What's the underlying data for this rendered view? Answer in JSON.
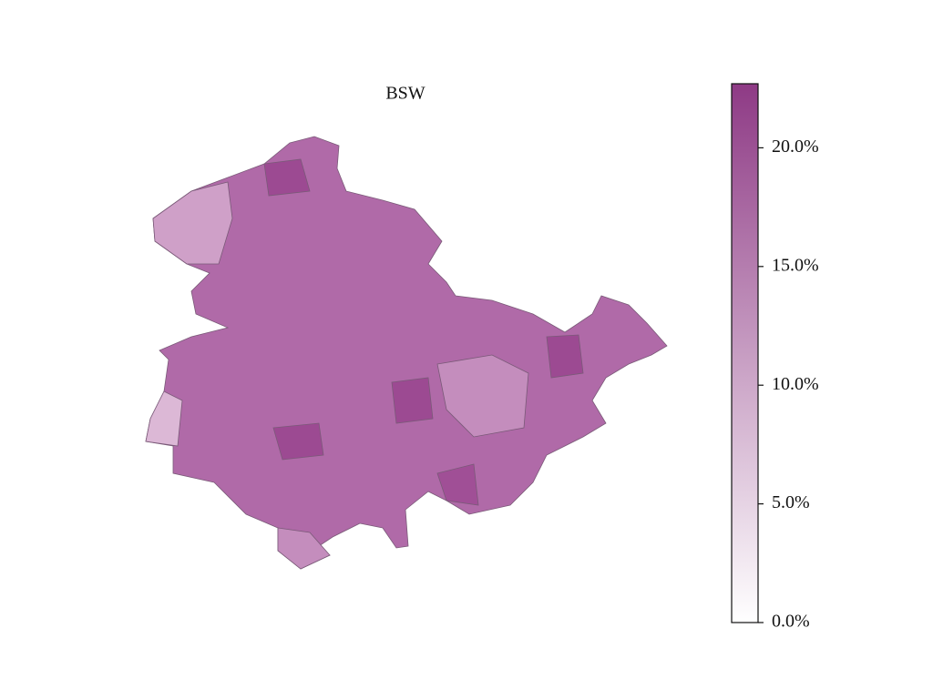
{
  "chart_data": {
    "type": "choropleth",
    "title": "BSW",
    "clim": [
      0,
      22.7
    ],
    "cticks": [
      {
        "value": 0,
        "label": "0.0%"
      },
      {
        "value": 5,
        "label": "5.0%"
      },
      {
        "value": 10,
        "label": "10.0%"
      },
      {
        "value": 15,
        "label": "15.0%"
      },
      {
        "value": 20,
        "label": "20.0%"
      }
    ],
    "colors": [
      "#ffffff",
      "#8e3a85"
    ]
  }
}
